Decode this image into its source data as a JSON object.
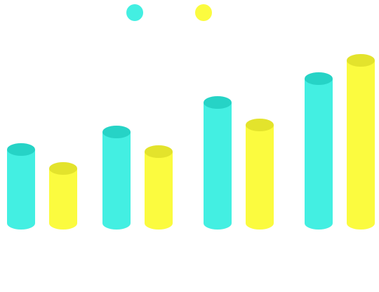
{
  "chart_data": {
    "type": "bar",
    "style": "3d-cylinder",
    "categories": [
      "",
      "",
      "",
      ""
    ],
    "series": [
      {
        "values": [
          105,
          130,
          172,
          206
        ],
        "color": "#43EFE2",
        "top_color": "#26D3C6"
      },
      {
        "values": [
          78,
          102,
          140,
          232
        ],
        "color": "#FBFB3F",
        "top_color": "#E3E32C"
      }
    ],
    "ylim": [
      0,
      240
    ],
    "grid": false,
    "legend": {
      "position": "top-center",
      "marker": "circle"
    }
  }
}
